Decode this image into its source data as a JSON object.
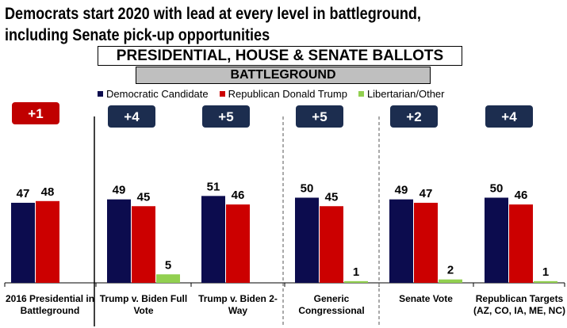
{
  "title": "Democrats start 2020 with lead at every level in battleground, including Senate pick-up opportunities",
  "banner_main": "PRESIDENTIAL, HOUSE & SENATE BALLOTS",
  "banner_sub": "BATTLEGROUND",
  "colors": {
    "democratic": "#0c0c4e",
    "republican": "#cc0000",
    "libertarian": "#92d050",
    "badge_dem": "#1c2d4f",
    "badge_rep": "#c00000"
  },
  "chart_data": {
    "type": "bar",
    "legend_position": "top",
    "series": [
      {
        "name": "Democratic Candidate",
        "values": [
          47,
          49,
          51,
          50,
          49,
          50
        ]
      },
      {
        "name": "Republican Donald Trump",
        "values": [
          48,
          45,
          46,
          45,
          47,
          46
        ]
      },
      {
        "name": "Libertarian/Other",
        "values": [
          null,
          5,
          null,
          1,
          2,
          1
        ]
      }
    ],
    "categories": [
      [
        "2016 Presidential in",
        "Battleground"
      ],
      [
        "Trump v. Biden Full",
        "Vote"
      ],
      [
        "Trump v. Biden 2-",
        "Way"
      ],
      [
        "Generic",
        "Congressional"
      ],
      [
        "Senate Vote",
        ""
      ],
      [
        "Republican Targets",
        "(AZ, CO, IA, ME, NC)"
      ]
    ],
    "margins": [
      {
        "label": "+1",
        "party": "republican"
      },
      {
        "label": "+4",
        "party": "democratic"
      },
      {
        "label": "+5",
        "party": "democratic"
      },
      {
        "label": "+5",
        "party": "democratic"
      },
      {
        "label": "+2",
        "party": "democratic"
      },
      {
        "label": "+4",
        "party": "democratic"
      }
    ]
  }
}
